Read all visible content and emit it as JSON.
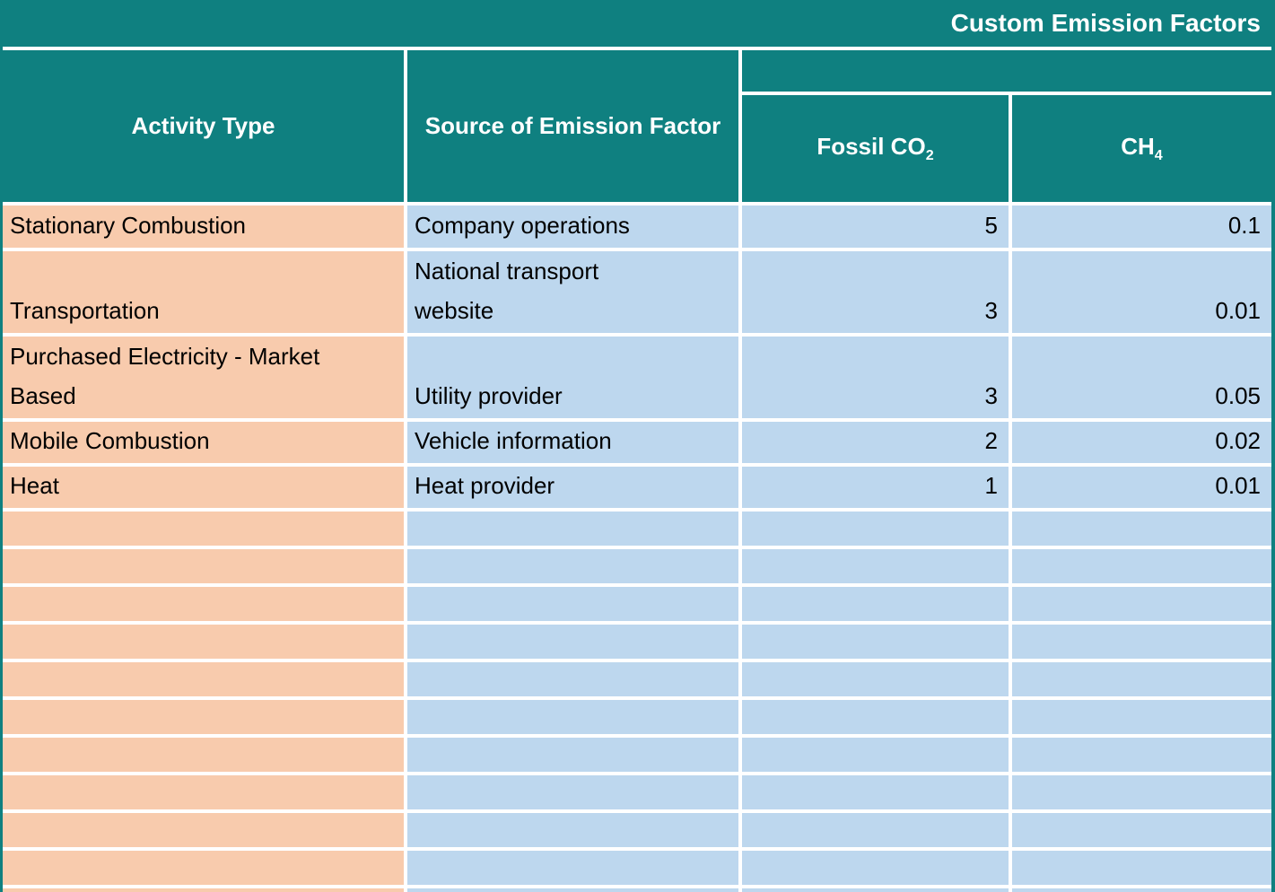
{
  "title": "Custom Emission Factors",
  "colors": {
    "teal": "#0F8080",
    "peach": "#F8CBAD",
    "blue": "#BDD7EE"
  },
  "header": {
    "activity_type": "Activity Type",
    "source": "Source of Emission Factor",
    "gas_group": "",
    "fossil_co2": {
      "base": "Fossil CO",
      "sub": "2"
    },
    "ch4": {
      "base": "CH",
      "sub": "4"
    }
  },
  "rows": [
    {
      "activity": "Stationary Combustion",
      "source": "Company operations",
      "fossil_co2": "5",
      "ch4": "0.1"
    },
    {
      "activity": "Transportation",
      "source": "National transport\nwebsite",
      "fossil_co2": "3",
      "ch4": "0.01"
    },
    {
      "activity": "Purchased Electricity - Market\nBased",
      "source": "Utility provider",
      "fossil_co2": "3",
      "ch4": "0.05"
    },
    {
      "activity": "Mobile Combustion",
      "source": "Vehicle information",
      "fossil_co2": "2",
      "ch4": "0.02"
    },
    {
      "activity": "Heat",
      "source": "Heat provider",
      "fossil_co2": "1",
      "ch4": "0.01"
    }
  ],
  "empty_row_count": 11
}
